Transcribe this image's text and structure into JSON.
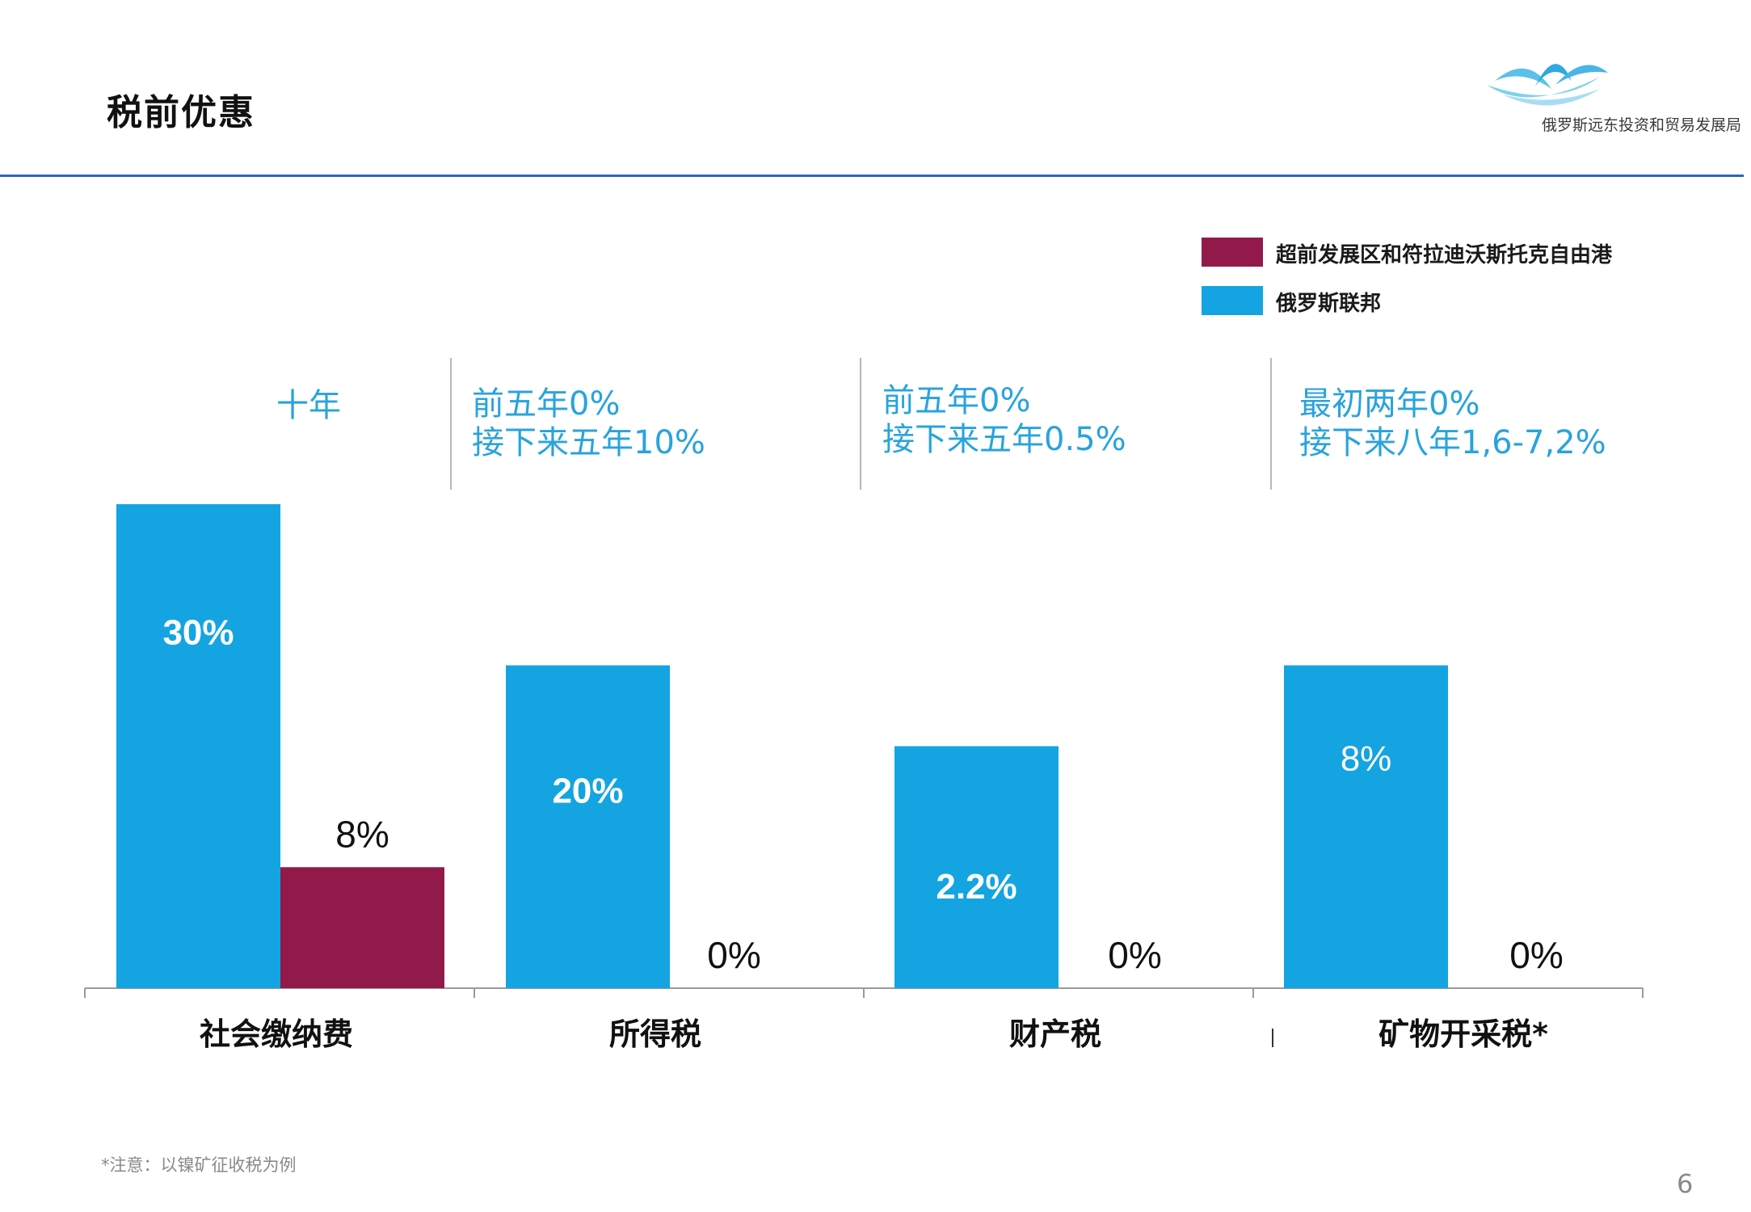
{
  "slide": {
    "title": "税前优惠",
    "org_name": "俄罗斯远东投资和贸易发展局",
    "footnote": "*注意：以镍矿征收税为例",
    "page_number": "6"
  },
  "notes": [
    {
      "lines": [
        "十年"
      ]
    },
    {
      "lines": [
        "前五年0%",
        "接下来五年10%"
      ]
    },
    {
      "lines": [
        "前五年0%",
        "接下来五年0.5%"
      ]
    },
    {
      "lines": [
        "最初两年0%",
        "接下来八年1,6-7,2%"
      ]
    }
  ],
  "colors": {
    "russia": "#14a4e1",
    "zone": "#921a4b",
    "note_text": "#29a3dd",
    "rule": "#2f63bd"
  },
  "chart_data": {
    "type": "bar",
    "categories": [
      "社会缴纳费",
      "所得税",
      "财产税",
      "矿物开采税*"
    ],
    "series": [
      {
        "name": "俄罗斯联邦",
        "color": "#14a4e1",
        "labels": [
          "30%",
          "20%",
          "2.2%",
          "8%"
        ]
      },
      {
        "name": "超前发展区和符拉迪沃斯托克自由港",
        "color": "#921a4b",
        "labels": [
          "8%",
          "0%",
          "0%",
          "0%"
        ]
      }
    ],
    "legend": [
      {
        "name": "超前发展区和符拉迪沃斯托克自由港",
        "color": "#921a4b"
      },
      {
        "name": "俄罗斯联邦",
        "color": "#14a4e1"
      }
    ],
    "legend_position": "top-right",
    "bar_heights_relative": [
      [
        1.0,
        0.25
      ],
      [
        0.667,
        0.0
      ],
      [
        0.5,
        0.0
      ],
      [
        0.667,
        0.0
      ]
    ],
    "grid": false
  }
}
